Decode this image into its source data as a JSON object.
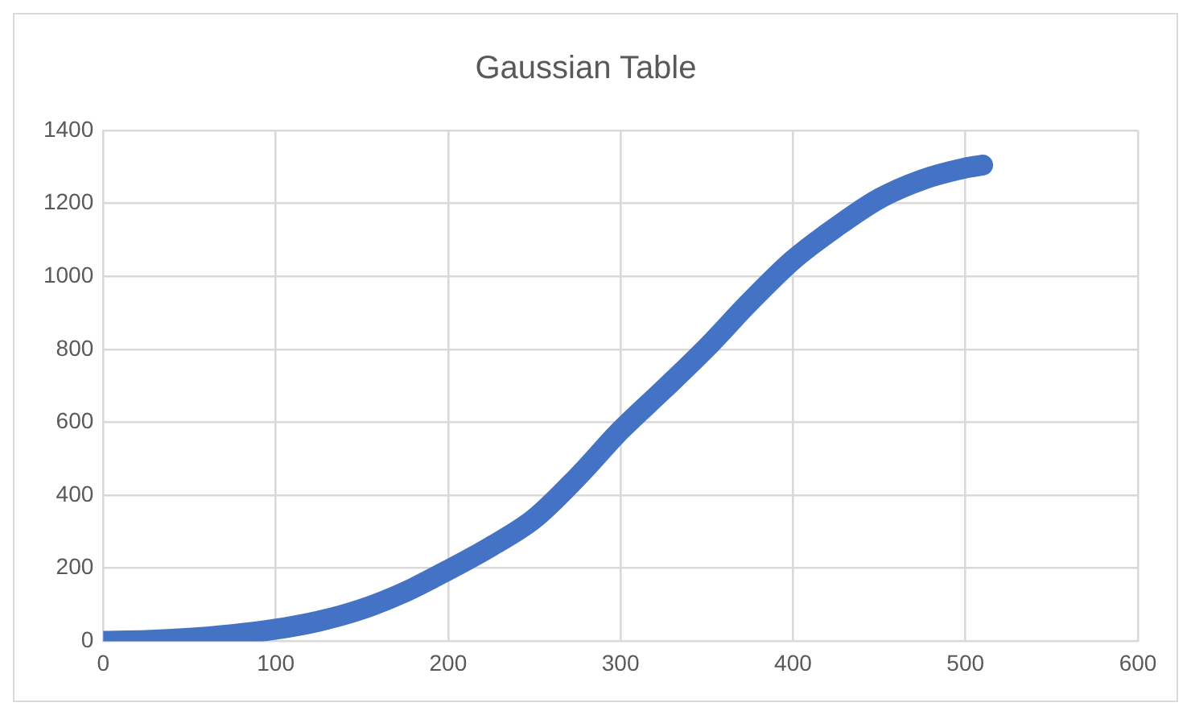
{
  "chart_data": {
    "type": "line",
    "title": "Gaussian Table",
    "x": [
      0,
      25,
      50,
      75,
      100,
      125,
      150,
      175,
      200,
      225,
      250,
      275,
      300,
      325,
      350,
      375,
      400,
      425,
      450,
      475,
      500,
      510
    ],
    "series": [
      {
        "color": "#4472c4",
        "values": [
          0,
          2,
          8,
          18,
          33,
          55,
          88,
          135,
          195,
          260,
          336,
          450,
          578,
          690,
          805,
          930,
          1045,
          1135,
          1213,
          1265,
          1297,
          1305
        ]
      }
    ],
    "xlim": [
      0,
      600
    ],
    "xticks": [
      0,
      100,
      200,
      300,
      400,
      500,
      600
    ],
    "ylim": [
      0,
      1400
    ],
    "yticks": [
      0,
      200,
      400,
      600,
      800,
      1000,
      1200,
      1400
    ],
    "grid": true,
    "legend": false,
    "marker": "none",
    "line_style": "solid"
  }
}
